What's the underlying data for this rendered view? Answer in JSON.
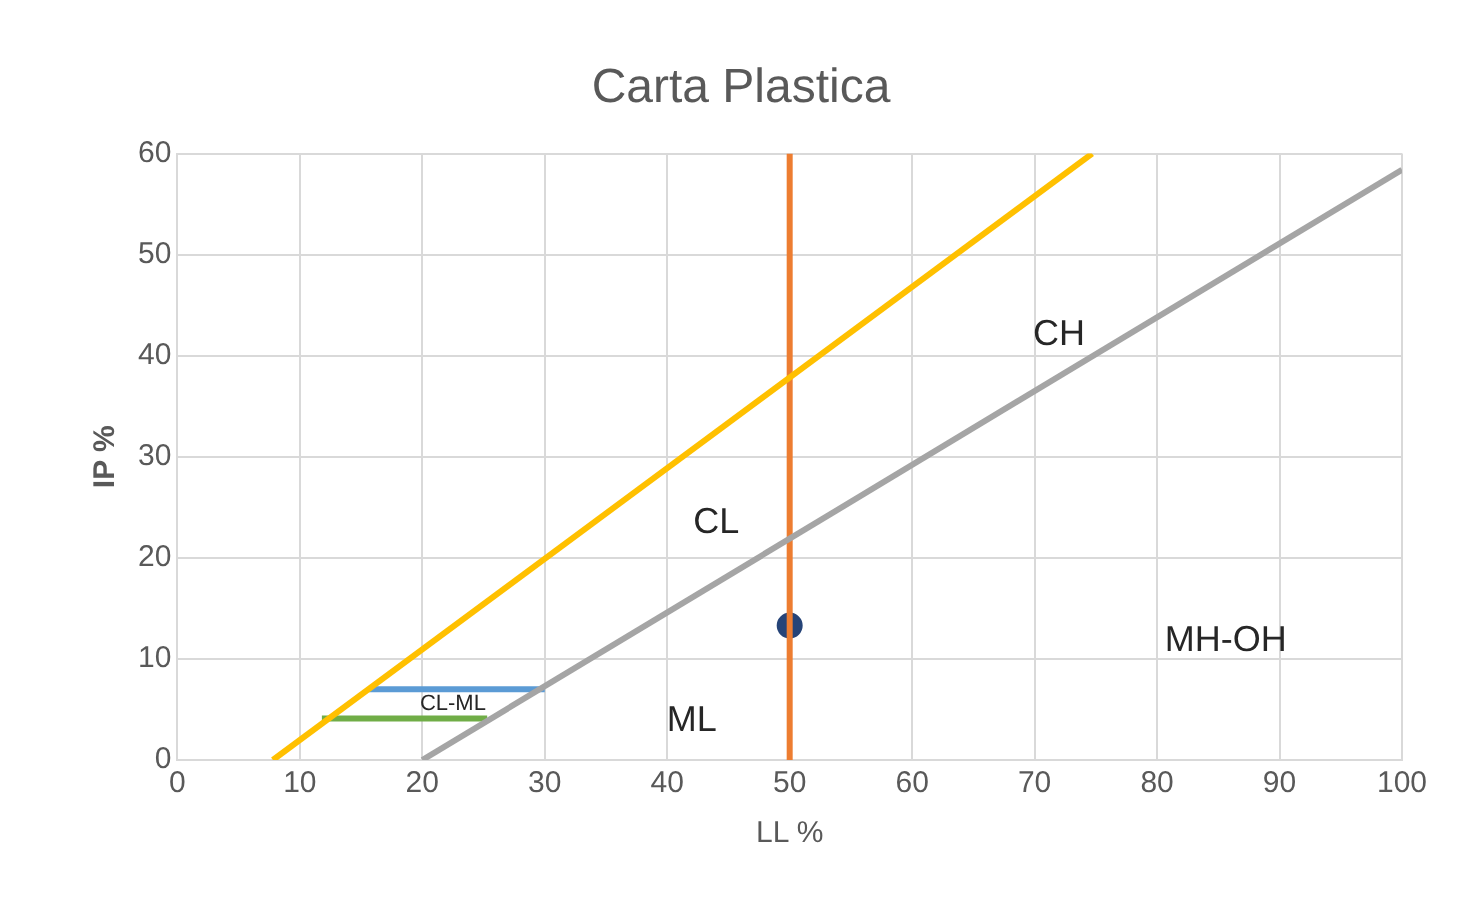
{
  "chart_data": {
    "type": "scatter",
    "title": "Carta Plastica",
    "xlabel": "LL %",
    "ylabel": "IP %",
    "xlim": [
      0,
      100
    ],
    "xticks": [
      0,
      10,
      20,
      30,
      40,
      50,
      60,
      70,
      80,
      90,
      100
    ],
    "ylim": [
      0,
      60
    ],
    "yticks": [
      0,
      10,
      20,
      30,
      40,
      50,
      60
    ],
    "grid": true,
    "legend": false,
    "series": [
      {
        "type": "line",
        "color": "#ffc000",
        "x": [
          7.8,
          74.7
        ],
        "values": [
          0,
          60
        ],
        "marker": "none"
      },
      {
        "type": "line",
        "color": "#a5a5a5",
        "x": [
          20,
          100
        ],
        "values": [
          0,
          58.4
        ],
        "marker": "none"
      },
      {
        "type": "line",
        "color": "#ed7d31",
        "x": [
          50,
          50
        ],
        "values": [
          0,
          60
        ],
        "marker": "none"
      },
      {
        "type": "line",
        "color": "#5b9bd5",
        "x": [
          15.6,
          30
        ],
        "values": [
          7,
          7
        ],
        "marker": "none"
      },
      {
        "type": "line",
        "color": "#70ad47",
        "x": [
          11.8,
          25.3
        ],
        "values": [
          4.1,
          4.1
        ],
        "marker": "none"
      },
      {
        "type": "scatter",
        "color": "#264478",
        "x": [
          50
        ],
        "values": [
          13.3
        ],
        "marker": "circle"
      }
    ],
    "annotations": [
      "CH",
      "CL",
      "ML",
      "MH-OH",
      "CL-ML"
    ]
  }
}
